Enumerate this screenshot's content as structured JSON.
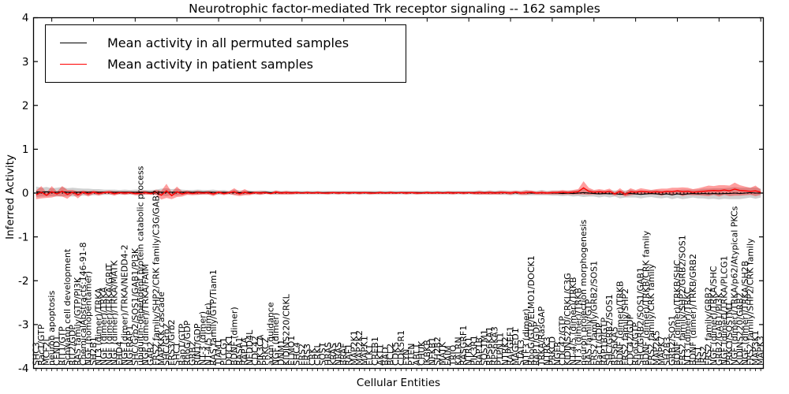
{
  "title": "Neurotrophic factor-mediated Trk receptor signaling -- 162 samples",
  "legend": {
    "items": [
      {
        "label": "Mean activity in all permuted samples",
        "color": "#000000"
      },
      {
        "label": "Mean activity in patient samples",
        "color": "#ff0000"
      }
    ]
  },
  "axes": {
    "ylabel": "Inferred Activity",
    "xlabel": "Cellular Entities",
    "yticks": [
      4,
      3,
      2,
      1,
      0,
      -1,
      -2,
      -3,
      -4
    ],
    "ylim": [
      -4,
      4
    ]
  },
  "colors": {
    "patient_line": "#ff0000",
    "patient_band": "rgba(255,0,0,0.38)",
    "permuted_line": "#000000",
    "permuted_band": "rgba(110,110,110,0.32)",
    "zero_line": "#000000",
    "axis": "#000000"
  },
  "chart_data": {
    "type": "line",
    "title": "Neurotrophic factor-mediated Trk receptor signaling -- 162 samples",
    "xlabel": "Cellular Entities",
    "ylabel": "Inferred Activity",
    "ylim": [
      -4,
      4
    ],
    "grid": false,
    "legend_position": "upper left",
    "categories": [
      "SHC3",
      "Rac1/GTP",
      "MCF2L",
      "neuron apoptosis",
      "CEND1",
      "RIT1/GTP",
      "Schwann cell development",
      "RIT2/GDP",
      "RAS family/GTP/PI3K",
      "ChemicalAbstracts:146-91-8",
      "NGF (homopentamer)",
      "SH2B1",
      "NT3 (dimer)/TRKA",
      "NGF (dimer)/TRKA",
      "NGF (dimer)/TRKA/GRIT",
      "NGF (dimer)/TRKA/MATK",
      "EHD4",
      "NGF (dimer)/TRKA/NEDD4-2",
      "NGFRAP1",
      "SHC/Grb2/SOS1/GAB1/PI3K",
      "ubiquitin-dependent protein catabolic process",
      "NGF (dimer)/TRKA/FAIM",
      "GAB2",
      "FRS2 family/SHP2/CRK family/C3G/GAB2",
      "MAPKKK cascade",
      "SHC/Grb2",
      "FRS3/Grb2",
      "SHC1",
      "Rap1/GTP",
      "RhoG/GDP",
      "GRB2",
      "RIN1/GDP",
      "NT-3 (dimer)",
      "NT-4/5 (dimer)",
      "RAS family/GTP/Tiam1",
      "TIAM1",
      "PLCG1",
      "DOCK1",
      "BDNF (dimer)",
      "RASA1",
      "RAP1A",
      "NEDD4L",
      "CDC42",
      "PIK3CA",
      "PRKCZ",
      "axon guidance",
      "NGF (dimer)",
      "DNM1",
      "KIDINS220/CRKL",
      "ELMO1",
      "SHC4",
      "FRS2",
      "FRS3",
      "CRK",
      "CRKL",
      "SOS1",
      "HRAS",
      "KRAS",
      "NRAS",
      "BRAF",
      "RAF1",
      "MAP2K1",
      "MAP2K2",
      "MAPK1",
      "ELK1",
      "CREB1",
      "AKT1",
      "BAD",
      "BCL2",
      "CDK5",
      "CDK5R1",
      "FYN",
      "PTEN",
      "ABL1",
      "CHUK",
      "IKBKB",
      "NFKB1",
      "SH2B2",
      "MATK",
      "FAIM",
      "TRIO",
      "KALRN",
      "RASGRF1",
      "NTRK1",
      "PIK3R1",
      "RAP1B",
      "SQSTM1",
      "RPS6KA1",
      "RPS6KA3",
      "PTPN11",
      "NTRK2",
      "RAPGEF1",
      "MAGED1",
      "STAT3",
      "NTF3 (dimer)",
      "RhoG/GTP/ELMO1/DOCK1",
      "RAP1/GDP",
      "TRKA/RasGAP",
      "NTRK3",
      "PRKCD",
      "NGFR",
      "CDC42/GTP",
      "KIDINS220/CRKL/C3G",
      "NT-4/5 (dimer)/TRKB",
      "NT3 (dimer)/TRKB",
      "neuron projection morphogenesis",
      "RAS family/GTP",
      "FRS2 family/GRB2/SOS1",
      "Rac1/GDP",
      "RAP1B/GTP",
      "SHC/GRB2/SOS1",
      "RPS6KA5",
      "BDNF (dimer)/TRKB",
      "FRS2 family/SHP2",
      "CDC42/GDP",
      "RhoG/GTP",
      "SHC/GRB2/SOS1/GAB1",
      "BDNF (dimer)/TRKB/CRK family",
      "FRS2 family/CRK family",
      "MAP2K5",
      "MAPK7",
      "SH2B3",
      "GRB2/SOS1",
      "BDNF (dimer)/TRKB/SHC",
      "FRS2 family/SHP2/GRB2/SOS1",
      "NT3 (dimer)/TRKC",
      "BDNF (dimer)/TRKB/GRB2",
      "IRS1",
      "IRS2",
      "FRS2 family/GRB2",
      "NGF (dimer)/TRKA/SHC",
      "GRB2/GAB1/PI3K",
      "NGF (dimer)/TRKA/PLCG1",
      "PRKCI/SQSTM1",
      "NGF (dimer)/TRKA/p62/Atypical PKCs",
      "KIDINS220/GRB2",
      "NGF (dimer)/TRKA/SH2B",
      "FRS2 family/SHP2/CRK family",
      "MAP3K1",
      "MAPK3"
    ],
    "series": [
      {
        "name": "Mean activity in all permuted samples",
        "values": [
          0.03,
          0.02,
          0.03,
          0.02,
          0.02,
          0.03,
          0.02,
          0.02,
          0.02,
          0.02,
          0.02,
          0.02,
          0.02,
          0.02,
          0.02,
          0.02,
          0.02,
          0.02,
          0.02,
          0.02,
          0.02,
          0.02,
          0.02,
          0.02,
          0.02,
          0.02,
          0.02,
          0.02,
          0.02,
          0.02,
          0.02,
          0.02,
          0.02,
          0.02,
          0.02,
          0.01,
          0.02,
          0.01,
          0.02,
          0.01,
          0.01,
          0.02,
          0.01,
          0.01,
          0.02,
          0.01,
          0.01,
          0.01,
          0.01,
          0.01,
          0.01,
          0.01,
          0.01,
          0.01,
          0.01,
          0.01,
          0.01,
          0.01,
          0.01,
          0.01,
          0.01,
          0.01,
          0.01,
          0.01,
          0.01,
          0.01,
          0.01,
          0.01,
          0.01,
          0.01,
          0.01,
          0.01,
          0.01,
          0.01,
          0.01,
          0.01,
          0.01,
          0.01,
          0.01,
          0.01,
          0.01,
          0.01,
          0.01,
          0.01,
          0.01,
          0.01,
          0.01,
          0.01,
          0.01,
          0.01,
          0.01,
          0.0,
          0.01,
          0.0,
          0.01,
          0.0,
          0.0,
          0.01,
          0.0,
          0.0,
          0.0,
          -0.01,
          0.0,
          -0.01,
          0.0,
          0.01,
          0.0,
          -0.01,
          -0.02,
          -0.01,
          -0.02,
          -0.01,
          -0.03,
          -0.02,
          -0.01,
          -0.02,
          -0.03,
          -0.02,
          -0.01,
          -0.02,
          -0.03,
          -0.02,
          -0.04,
          -0.02,
          -0.03,
          -0.02,
          -0.01,
          -0.02,
          -0.01,
          -0.02,
          -0.01,
          -0.02,
          -0.01,
          -0.01,
          0.0,
          -0.01,
          0.0,
          0.01,
          0.0,
          0.0
        ]
      },
      {
        "name": "Mean activity in patient samples",
        "values": [
          -0.04,
          0.02,
          -0.05,
          0.03,
          -0.02,
          0.04,
          -0.03,
          0.02,
          -0.04,
          0.02,
          -0.02,
          0.02,
          -0.01,
          0.01,
          0.02,
          -0.01,
          0.01,
          0.0,
          0.01,
          -0.01,
          0.0,
          0.01,
          -0.01,
          0.02,
          -0.05,
          0.05,
          -0.06,
          0.03,
          -0.02,
          0.01,
          -0.01,
          0.01,
          0.0,
          0.01,
          -0.02,
          0.02,
          -0.01,
          0.01,
          0.03,
          -0.02,
          0.02,
          -0.01,
          0.01,
          0.0,
          0.01,
          -0.01,
          0.02,
          0.0,
          0.01,
          0.0,
          0.01,
          0.0,
          0.01,
          0.0,
          0.01,
          0.0,
          0.0,
          0.01,
          0.0,
          0.01,
          0.0,
          0.01,
          0.0,
          0.01,
          0.0,
          0.0,
          0.01,
          0.0,
          0.01,
          0.0,
          0.01,
          0.0,
          0.01,
          0.0,
          0.0,
          0.01,
          0.0,
          0.01,
          0.0,
          0.01,
          0.0,
          0.01,
          0.0,
          0.01,
          0.0,
          0.01,
          0.0,
          0.01,
          0.0,
          0.01,
          0.01,
          0.0,
          0.02,
          0.0,
          0.01,
          0.02,
          0.0,
          0.01,
          0.0,
          0.01,
          0.01,
          0.02,
          0.01,
          0.02,
          0.03,
          0.12,
          0.04,
          0.02,
          0.03,
          0.02,
          0.04,
          -0.02,
          0.04,
          -0.03,
          0.03,
          0.02,
          0.04,
          0.03,
          0.02,
          0.03,
          0.02,
          0.04,
          0.03,
          0.05,
          0.03,
          0.04,
          0.02,
          0.03,
          0.04,
          0.05,
          0.06,
          0.05,
          0.07,
          0.05,
          0.09,
          0.06,
          0.05,
          0.04,
          0.05,
          0.02
        ]
      },
      {
        "name": "patient band halfwidth",
        "values": [
          0.1,
          0.14,
          0.06,
          0.13,
          0.05,
          0.12,
          0.1,
          0.05,
          0.08,
          0.04,
          0.06,
          0.04,
          0.05,
          0.03,
          0.04,
          0.05,
          0.03,
          0.04,
          0.03,
          0.04,
          0.05,
          0.04,
          0.03,
          0.06,
          0.1,
          0.16,
          0.08,
          0.12,
          0.06,
          0.05,
          0.04,
          0.05,
          0.03,
          0.04,
          0.05,
          0.03,
          0.04,
          0.03,
          0.08,
          0.05,
          0.07,
          0.04,
          0.03,
          0.04,
          0.03,
          0.02,
          0.04,
          0.03,
          0.04,
          0.03,
          0.03,
          0.02,
          0.03,
          0.02,
          0.03,
          0.02,
          0.03,
          0.02,
          0.03,
          0.02,
          0.03,
          0.02,
          0.03,
          0.02,
          0.03,
          0.02,
          0.03,
          0.02,
          0.03,
          0.02,
          0.02,
          0.03,
          0.02,
          0.03,
          0.02,
          0.03,
          0.02,
          0.03,
          0.02,
          0.03,
          0.03,
          0.02,
          0.03,
          0.02,
          0.03,
          0.04,
          0.03,
          0.04,
          0.03,
          0.04,
          0.03,
          0.04,
          0.03,
          0.04,
          0.05,
          0.04,
          0.03,
          0.04,
          0.03,
          0.04,
          0.04,
          0.05,
          0.04,
          0.05,
          0.06,
          0.15,
          0.08,
          0.05,
          0.06,
          0.05,
          0.06,
          0.04,
          0.07,
          0.05,
          0.08,
          0.05,
          0.07,
          0.06,
          0.05,
          0.06,
          0.08,
          0.06,
          0.09,
          0.07,
          0.1,
          0.08,
          0.07,
          0.08,
          0.1,
          0.12,
          0.1,
          0.13,
          0.11,
          0.12,
          0.15,
          0.12,
          0.1,
          0.08,
          0.12,
          0.06
        ]
      },
      {
        "name": "permuted band halfwidth",
        "values": [
          0.12,
          0.1,
          0.11,
          0.09,
          0.1,
          0.11,
          0.09,
          0.1,
          0.09,
          0.08,
          0.08,
          0.07,
          0.07,
          0.06,
          0.06,
          0.06,
          0.05,
          0.06,
          0.05,
          0.06,
          0.06,
          0.05,
          0.05,
          0.06,
          0.08,
          0.09,
          0.07,
          0.08,
          0.06,
          0.05,
          0.05,
          0.06,
          0.05,
          0.05,
          0.06,
          0.05,
          0.05,
          0.04,
          0.06,
          0.05,
          0.05,
          0.04,
          0.04,
          0.05,
          0.04,
          0.04,
          0.05,
          0.04,
          0.04,
          0.04,
          0.04,
          0.04,
          0.04,
          0.04,
          0.04,
          0.04,
          0.04,
          0.04,
          0.04,
          0.04,
          0.04,
          0.04,
          0.04,
          0.04,
          0.04,
          0.04,
          0.04,
          0.04,
          0.04,
          0.04,
          0.04,
          0.04,
          0.04,
          0.04,
          0.04,
          0.04,
          0.04,
          0.04,
          0.04,
          0.04,
          0.04,
          0.04,
          0.04,
          0.04,
          0.04,
          0.05,
          0.04,
          0.05,
          0.04,
          0.05,
          0.05,
          0.05,
          0.05,
          0.05,
          0.06,
          0.05,
          0.05,
          0.06,
          0.05,
          0.06,
          0.06,
          0.06,
          0.06,
          0.07,
          0.07,
          0.1,
          0.08,
          0.07,
          0.08,
          0.07,
          0.08,
          0.07,
          0.09,
          0.08,
          0.09,
          0.08,
          0.09,
          0.08,
          0.08,
          0.09,
          0.09,
          0.08,
          0.1,
          0.09,
          0.11,
          0.1,
          0.09,
          0.1,
          0.11,
          0.12,
          0.12,
          0.13,
          0.12,
          0.13,
          0.14,
          0.13,
          0.12,
          0.11,
          0.13,
          0.1
        ]
      }
    ]
  }
}
